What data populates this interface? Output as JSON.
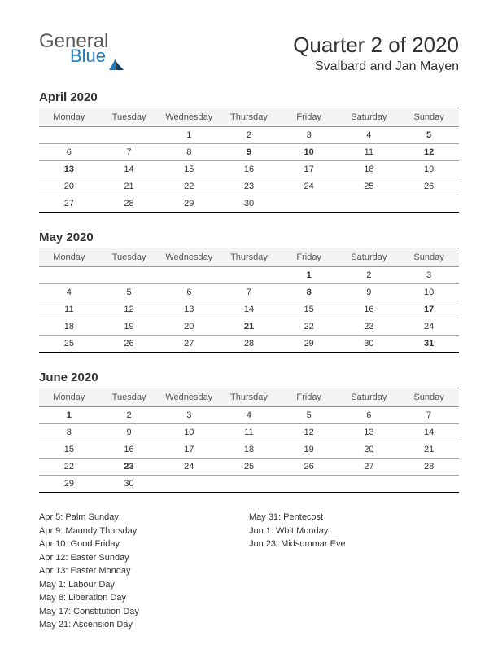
{
  "logo": {
    "general": "General",
    "blue": "Blue"
  },
  "title": "Quarter 2 of 2020",
  "subtitle": "Svalbard and Jan Mayen",
  "day_headers": [
    "Monday",
    "Tuesday",
    "Wednesday",
    "Thursday",
    "Friday",
    "Saturday",
    "Sunday"
  ],
  "colors": {
    "holiday": "#c00000",
    "text": "#333333",
    "logo_blue": "#1a7cc4",
    "logo_grey": "#5a5a5a",
    "header_bg": "#f4f4f4",
    "rule_dark": "#000000",
    "rule_light": "#aaaaaa"
  },
  "months": [
    {
      "title": "April 2020",
      "weeks": [
        [
          {
            "d": ""
          },
          {
            "d": ""
          },
          {
            "d": "1"
          },
          {
            "d": "2"
          },
          {
            "d": "3"
          },
          {
            "d": "4"
          },
          {
            "d": "5",
            "h": true
          }
        ],
        [
          {
            "d": "6"
          },
          {
            "d": "7"
          },
          {
            "d": "8"
          },
          {
            "d": "9",
            "h": true
          },
          {
            "d": "10",
            "h": true
          },
          {
            "d": "11"
          },
          {
            "d": "12",
            "h": true
          }
        ],
        [
          {
            "d": "13",
            "h": true
          },
          {
            "d": "14"
          },
          {
            "d": "15"
          },
          {
            "d": "16"
          },
          {
            "d": "17"
          },
          {
            "d": "18"
          },
          {
            "d": "19"
          }
        ],
        [
          {
            "d": "20"
          },
          {
            "d": "21"
          },
          {
            "d": "22"
          },
          {
            "d": "23"
          },
          {
            "d": "24"
          },
          {
            "d": "25"
          },
          {
            "d": "26"
          }
        ],
        [
          {
            "d": "27"
          },
          {
            "d": "28"
          },
          {
            "d": "29"
          },
          {
            "d": "30"
          },
          {
            "d": ""
          },
          {
            "d": ""
          },
          {
            "d": ""
          }
        ]
      ]
    },
    {
      "title": "May 2020",
      "weeks": [
        [
          {
            "d": ""
          },
          {
            "d": ""
          },
          {
            "d": ""
          },
          {
            "d": ""
          },
          {
            "d": "1",
            "h": true
          },
          {
            "d": "2"
          },
          {
            "d": "3"
          }
        ],
        [
          {
            "d": "4"
          },
          {
            "d": "5"
          },
          {
            "d": "6"
          },
          {
            "d": "7"
          },
          {
            "d": "8",
            "h": true
          },
          {
            "d": "9"
          },
          {
            "d": "10"
          }
        ],
        [
          {
            "d": "11"
          },
          {
            "d": "12"
          },
          {
            "d": "13"
          },
          {
            "d": "14"
          },
          {
            "d": "15"
          },
          {
            "d": "16"
          },
          {
            "d": "17",
            "h": true
          }
        ],
        [
          {
            "d": "18"
          },
          {
            "d": "19"
          },
          {
            "d": "20"
          },
          {
            "d": "21",
            "h": true
          },
          {
            "d": "22"
          },
          {
            "d": "23"
          },
          {
            "d": "24"
          }
        ],
        [
          {
            "d": "25"
          },
          {
            "d": "26"
          },
          {
            "d": "27"
          },
          {
            "d": "28"
          },
          {
            "d": "29"
          },
          {
            "d": "30"
          },
          {
            "d": "31",
            "h": true
          }
        ]
      ]
    },
    {
      "title": "June 2020",
      "weeks": [
        [
          {
            "d": "1",
            "h": true
          },
          {
            "d": "2"
          },
          {
            "d": "3"
          },
          {
            "d": "4"
          },
          {
            "d": "5"
          },
          {
            "d": "6"
          },
          {
            "d": "7"
          }
        ],
        [
          {
            "d": "8"
          },
          {
            "d": "9"
          },
          {
            "d": "10"
          },
          {
            "d": "11"
          },
          {
            "d": "12"
          },
          {
            "d": "13"
          },
          {
            "d": "14"
          }
        ],
        [
          {
            "d": "15"
          },
          {
            "d": "16"
          },
          {
            "d": "17"
          },
          {
            "d": "18"
          },
          {
            "d": "19"
          },
          {
            "d": "20"
          },
          {
            "d": "21"
          }
        ],
        [
          {
            "d": "22"
          },
          {
            "d": "23",
            "h": true
          },
          {
            "d": "24"
          },
          {
            "d": "25"
          },
          {
            "d": "26"
          },
          {
            "d": "27"
          },
          {
            "d": "28"
          }
        ],
        [
          {
            "d": "29"
          },
          {
            "d": "30"
          },
          {
            "d": ""
          },
          {
            "d": ""
          },
          {
            "d": ""
          },
          {
            "d": ""
          },
          {
            "d": ""
          }
        ]
      ]
    }
  ],
  "holidays_left": [
    "Apr 5: Palm Sunday",
    "Apr 9: Maundy Thursday",
    "Apr 10: Good Friday",
    "Apr 12: Easter Sunday",
    "Apr 13: Easter Monday",
    "May 1: Labour Day",
    "May 8: Liberation Day",
    "May 17: Constitution Day",
    "May 21: Ascension Day"
  ],
  "holidays_right": [
    "May 31: Pentecost",
    "Jun 1: Whit Monday",
    "Jun 23: Midsummar Eve"
  ]
}
